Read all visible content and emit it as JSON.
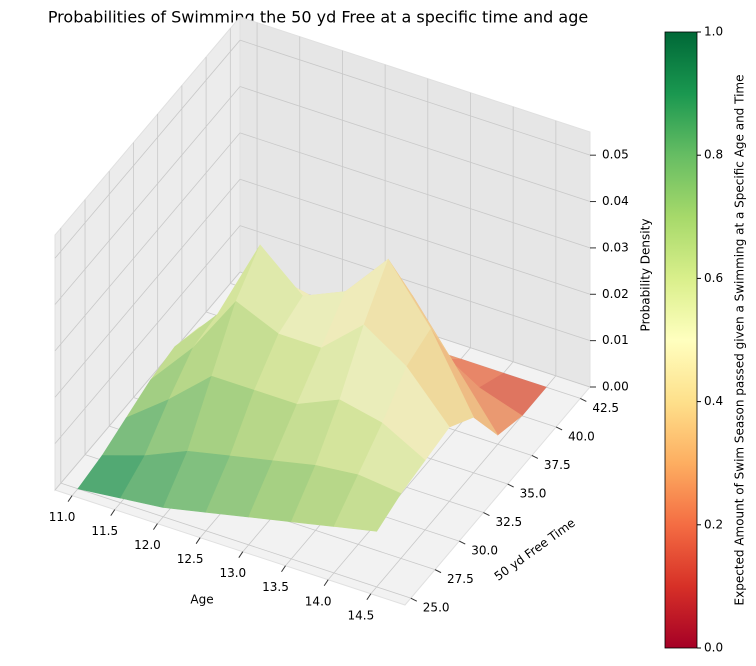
{
  "chart_data": {
    "type": "surface3d",
    "title": "Probabilities of Swimming the 50 yd Free at a specific time and age",
    "xlabel": "Age",
    "ylabel": "50 yd Free Time",
    "zlabel": "Probability Density",
    "xlim": [
      10.8,
      14.9
    ],
    "ylim": [
      24.4,
      43.5
    ],
    "zlim": [
      0,
      0.055
    ],
    "xticks": [
      {
        "value": 11,
        "label": "11.0"
      },
      11.5,
      {
        "value": 12,
        "label": "12.0"
      },
      12.5,
      {
        "value": 13,
        "label": "13.0"
      },
      13.5,
      {
        "value": 14,
        "label": "14.0"
      },
      14.5
    ],
    "yticks": [
      {
        "value": 25,
        "label": "25.0"
      },
      27.5,
      {
        "value": 30,
        "label": "30.0"
      },
      32.5,
      {
        "value": 35,
        "label": "35.0"
      },
      37.5,
      {
        "value": 40,
        "label": "40.0"
      },
      42.5
    ],
    "zticks": [
      {
        "value": 0,
        "label": "0.00"
      },
      0.01,
      0.02,
      0.03,
      0.04,
      0.05
    ],
    "age": [
      11,
      11.5,
      12,
      12.5,
      13,
      13.5,
      14,
      14.5
    ],
    "time": [
      25,
      27.5,
      30,
      32.5,
      35,
      37.5,
      40,
      42.5
    ],
    "z": [
      [
        0.0,
        0.001,
        0.003,
        0.005,
        0.006,
        0.004,
        0.001,
        0.0
      ],
      [
        0.001,
        0.004,
        0.01,
        0.015,
        0.016,
        0.01,
        0.003,
        0.0
      ],
      [
        0.002,
        0.008,
        0.018,
        0.028,
        0.034,
        0.02,
        0.005,
        0.0
      ],
      [
        0.004,
        0.01,
        0.018,
        0.024,
        0.026,
        0.018,
        0.005,
        0.0
      ],
      [
        0.006,
        0.012,
        0.018,
        0.024,
        0.03,
        0.022,
        0.006,
        0.0
      ],
      [
        0.008,
        0.014,
        0.022,
        0.032,
        0.04,
        0.026,
        0.006,
        0.0
      ],
      [
        0.01,
        0.015,
        0.02,
        0.026,
        0.028,
        0.014,
        0.003,
        0.0
      ],
      [
        0.012,
        0.014,
        0.015,
        0.016,
        0.012,
        0.002,
        0.0,
        0.0
      ]
    ],
    "c": [
      [
        0.95,
        0.88,
        0.8,
        0.72,
        0.64,
        0.56,
        0.48,
        0.4
      ],
      [
        0.9,
        0.82,
        0.74,
        0.66,
        0.58,
        0.5,
        0.42,
        0.34
      ],
      [
        0.86,
        0.78,
        0.7,
        0.62,
        0.54,
        0.46,
        0.38,
        0.3
      ],
      [
        0.82,
        0.74,
        0.66,
        0.58,
        0.5,
        0.42,
        0.34,
        0.26
      ],
      [
        0.78,
        0.7,
        0.62,
        0.54,
        0.46,
        0.38,
        0.3,
        0.22
      ],
      [
        0.74,
        0.66,
        0.58,
        0.5,
        0.42,
        0.34,
        0.26,
        0.18
      ],
      [
        0.7,
        0.62,
        0.54,
        0.46,
        0.38,
        0.3,
        0.22,
        0.14
      ],
      [
        0.66,
        0.58,
        0.5,
        0.42,
        0.34,
        0.26,
        0.18,
        0.1
      ]
    ],
    "colorbar": {
      "label": "Expected Amount of Swim Season passed given a Swimming at a Specific Age and Time",
      "lim": [
        0,
        1
      ],
      "ticks": [
        {
          "value": 0,
          "label": "0.0"
        },
        0.2,
        0.4,
        0.6,
        0.8,
        {
          "value": 1,
          "label": "1.0"
        }
      ]
    }
  }
}
